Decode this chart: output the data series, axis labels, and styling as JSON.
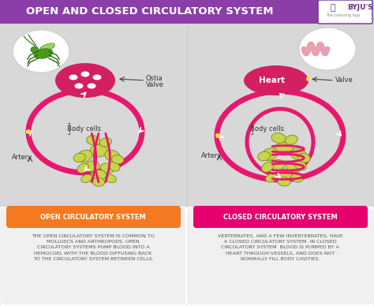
{
  "title": "OPEN AND CLOSED CIRCULATORY SYSTEM",
  "bg_color": "#d8d8d8",
  "title_bg": "#8B3EA8",
  "title_color": "#ffffff",
  "open_label": "OPEN CIRCULATORY SYSTEM",
  "closed_label": "CLOSED CIRCULATORY SYSTEM",
  "open_color": "#F47920",
  "closed_color": "#E5006E",
  "open_text": "THE OPEN CIRCULATORY SYSTEM IS COMMON TO\nMOLLUSCS AND ARTHROPODS. OPEN\nCIRCULATORY SYSTEMS PUMP BLOOD INTO A\nHEMOCOEL WITH THE BLOOD DIFFUSING BACK\nTO THE CIRCULATORY SYSTEM BETWEEN CELLS.",
  "closed_text": "VERTEBRATES, AND A FEW INVERTEBRATES, HAVE\nA CLOSED CIRCULATORY SYSTEM. IN CLOSED\nCIRCULATORY SYSTEM  BLOOD IS PUMPED BY A\nHEART THROUGH VESSELS, AND DOES NOT\nNORMALLY FILL BODY CAVITIES.",
  "card_bg": "#f0f0f0",
  "heart_red": "#d42060",
  "vessel_red": "#e8176e",
  "body_cells_yellow": "#c8d44e",
  "body_cells_dark": "#7a8a10",
  "text_dark": "#555555",
  "label_color": "#333333",
  "byju_purple": "#6B2E8E",
  "byju_dark": "#4a1f6e",
  "white": "#ffffff",
  "divider": "#cccccc"
}
